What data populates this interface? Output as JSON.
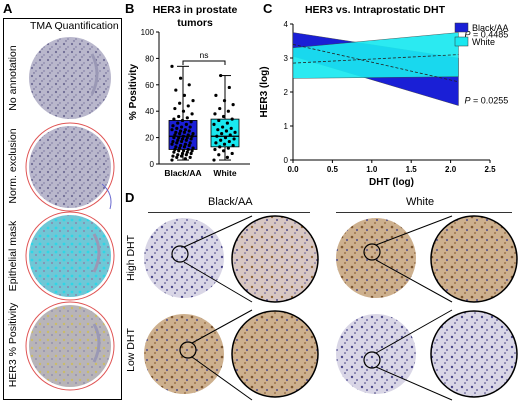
{
  "panel_labels": {
    "a": "A",
    "b": "B",
    "c": "C",
    "d": "D"
  },
  "panel_a": {
    "title": "TMA Quantification",
    "rows": [
      {
        "label": "No annotation"
      },
      {
        "label": "Norm. exclusion"
      },
      {
        "label": "Epithelial mask"
      },
      {
        "label": "HER3 % Positivity"
      }
    ]
  },
  "panel_d": {
    "groups": [
      "Black/AA",
      "White"
    ],
    "rows": [
      "High DHT",
      "Low DHT"
    ]
  },
  "colors": {
    "black_aa": "#1a1fd6",
    "white": "#19e8f0",
    "ribbon_edge": "#3a3a3a"
  },
  "chart_data": [
    {
      "type": "box",
      "title": "HER3 in prostate tumors",
      "ylabel": "% Positivity",
      "xlabel": "",
      "categories": [
        "Black/AA",
        "White"
      ],
      "ylim": [
        0,
        100
      ],
      "yticks": [
        0,
        20,
        40,
        60,
        80,
        100
      ],
      "significance": "ns",
      "series": [
        {
          "name": "Black/AA",
          "color": "#1a1fd6",
          "min": 3,
          "q1": 11,
          "median": 21,
          "q3": 33,
          "max": 74,
          "points": [
            3,
            4,
            5,
            5,
            6,
            6,
            7,
            7,
            8,
            8,
            9,
            9,
            10,
            10,
            10,
            11,
            11,
            12,
            12,
            13,
            13,
            14,
            14,
            15,
            15,
            16,
            16,
            17,
            17,
            18,
            18,
            19,
            19,
            20,
            20,
            20,
            21,
            21,
            22,
            22,
            23,
            23,
            24,
            24,
            25,
            25,
            26,
            26,
            27,
            28,
            28,
            29,
            30,
            31,
            32,
            33,
            34,
            35,
            36,
            38,
            40,
            42,
            44,
            46,
            48,
            52,
            56,
            60,
            65,
            74
          ]
        },
        {
          "name": "White",
          "color": "#19e8f0",
          "min": 3,
          "q1": 13,
          "median": 21,
          "q3": 34,
          "max": 67,
          "points": [
            3,
            5,
            7,
            8,
            10,
            11,
            12,
            13,
            14,
            15,
            16,
            17,
            18,
            19,
            20,
            21,
            22,
            23,
            24,
            25,
            26,
            27,
            28,
            30,
            31,
            33,
            34,
            36,
            38,
            40,
            42,
            45,
            48,
            52,
            58,
            67
          ]
        }
      ]
    },
    {
      "type": "area",
      "title": "HER3 vs. Intraprostatic DHT",
      "xlabel": "DHT (log)",
      "ylabel": "HER3 (log)",
      "xlim": [
        0,
        2.5
      ],
      "ylim": [
        0,
        4
      ],
      "xticks": [
        "0.0",
        "0.5",
        "1.0",
        "1.5",
        "2.0",
        "2.5"
      ],
      "yticks": [
        0,
        1,
        2,
        3,
        4
      ],
      "legend_position": "top-right",
      "series": [
        {
          "name": "Black/AA",
          "color": "#1a1fd6",
          "x": [
            0.0,
            2.1
          ],
          "fit": [
            3.4,
            2.3
          ],
          "upper": [
            3.75,
            3.0
          ],
          "lower": [
            3.05,
            1.6
          ],
          "p_value": "P = 0.0255"
        },
        {
          "name": "White",
          "color": "#19e8f0",
          "x": [
            0.0,
            2.1
          ],
          "fit": [
            2.85,
            3.1
          ],
          "upper": [
            3.3,
            3.75
          ],
          "lower": [
            2.4,
            2.45
          ],
          "p_value": "P = 0.4485"
        }
      ]
    }
  ]
}
